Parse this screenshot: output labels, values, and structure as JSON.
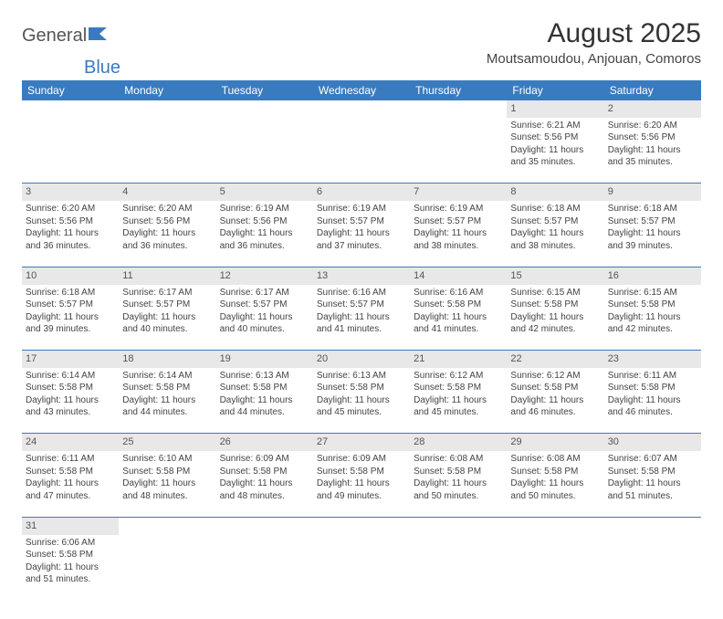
{
  "logo": {
    "text1": "General",
    "text2": "Blue"
  },
  "title": "August 2025",
  "location": "Moutsamoudou, Anjouan, Comoros",
  "colors": {
    "header_bg": "#3a7bbf",
    "header_fg": "#ffffff",
    "daynum_bg": "#e8e8e8",
    "row_border": "#3a7bbf",
    "text": "#444444",
    "page_bg": "#ffffff"
  },
  "weekdays": [
    "Sunday",
    "Monday",
    "Tuesday",
    "Wednesday",
    "Thursday",
    "Friday",
    "Saturday"
  ],
  "weeks": [
    {
      "days": [
        null,
        null,
        null,
        null,
        null,
        {
          "n": "1",
          "sr": "6:21 AM",
          "ss": "5:56 PM",
          "dl": "11 hours and 35 minutes."
        },
        {
          "n": "2",
          "sr": "6:20 AM",
          "ss": "5:56 PM",
          "dl": "11 hours and 35 minutes."
        }
      ]
    },
    {
      "days": [
        {
          "n": "3",
          "sr": "6:20 AM",
          "ss": "5:56 PM",
          "dl": "11 hours and 36 minutes."
        },
        {
          "n": "4",
          "sr": "6:20 AM",
          "ss": "5:56 PM",
          "dl": "11 hours and 36 minutes."
        },
        {
          "n": "5",
          "sr": "6:19 AM",
          "ss": "5:56 PM",
          "dl": "11 hours and 36 minutes."
        },
        {
          "n": "6",
          "sr": "6:19 AM",
          "ss": "5:57 PM",
          "dl": "11 hours and 37 minutes."
        },
        {
          "n": "7",
          "sr": "6:19 AM",
          "ss": "5:57 PM",
          "dl": "11 hours and 38 minutes."
        },
        {
          "n": "8",
          "sr": "6:18 AM",
          "ss": "5:57 PM",
          "dl": "11 hours and 38 minutes."
        },
        {
          "n": "9",
          "sr": "6:18 AM",
          "ss": "5:57 PM",
          "dl": "11 hours and 39 minutes."
        }
      ]
    },
    {
      "days": [
        {
          "n": "10",
          "sr": "6:18 AM",
          "ss": "5:57 PM",
          "dl": "11 hours and 39 minutes."
        },
        {
          "n": "11",
          "sr": "6:17 AM",
          "ss": "5:57 PM",
          "dl": "11 hours and 40 minutes."
        },
        {
          "n": "12",
          "sr": "6:17 AM",
          "ss": "5:57 PM",
          "dl": "11 hours and 40 minutes."
        },
        {
          "n": "13",
          "sr": "6:16 AM",
          "ss": "5:57 PM",
          "dl": "11 hours and 41 minutes."
        },
        {
          "n": "14",
          "sr": "6:16 AM",
          "ss": "5:58 PM",
          "dl": "11 hours and 41 minutes."
        },
        {
          "n": "15",
          "sr": "6:15 AM",
          "ss": "5:58 PM",
          "dl": "11 hours and 42 minutes."
        },
        {
          "n": "16",
          "sr": "6:15 AM",
          "ss": "5:58 PM",
          "dl": "11 hours and 42 minutes."
        }
      ]
    },
    {
      "days": [
        {
          "n": "17",
          "sr": "6:14 AM",
          "ss": "5:58 PM",
          "dl": "11 hours and 43 minutes."
        },
        {
          "n": "18",
          "sr": "6:14 AM",
          "ss": "5:58 PM",
          "dl": "11 hours and 44 minutes."
        },
        {
          "n": "19",
          "sr": "6:13 AM",
          "ss": "5:58 PM",
          "dl": "11 hours and 44 minutes."
        },
        {
          "n": "20",
          "sr": "6:13 AM",
          "ss": "5:58 PM",
          "dl": "11 hours and 45 minutes."
        },
        {
          "n": "21",
          "sr": "6:12 AM",
          "ss": "5:58 PM",
          "dl": "11 hours and 45 minutes."
        },
        {
          "n": "22",
          "sr": "6:12 AM",
          "ss": "5:58 PM",
          "dl": "11 hours and 46 minutes."
        },
        {
          "n": "23",
          "sr": "6:11 AM",
          "ss": "5:58 PM",
          "dl": "11 hours and 46 minutes."
        }
      ]
    },
    {
      "days": [
        {
          "n": "24",
          "sr": "6:11 AM",
          "ss": "5:58 PM",
          "dl": "11 hours and 47 minutes."
        },
        {
          "n": "25",
          "sr": "6:10 AM",
          "ss": "5:58 PM",
          "dl": "11 hours and 48 minutes."
        },
        {
          "n": "26",
          "sr": "6:09 AM",
          "ss": "5:58 PM",
          "dl": "11 hours and 48 minutes."
        },
        {
          "n": "27",
          "sr": "6:09 AM",
          "ss": "5:58 PM",
          "dl": "11 hours and 49 minutes."
        },
        {
          "n": "28",
          "sr": "6:08 AM",
          "ss": "5:58 PM",
          "dl": "11 hours and 50 minutes."
        },
        {
          "n": "29",
          "sr": "6:08 AM",
          "ss": "5:58 PM",
          "dl": "11 hours and 50 minutes."
        },
        {
          "n": "30",
          "sr": "6:07 AM",
          "ss": "5:58 PM",
          "dl": "11 hours and 51 minutes."
        }
      ]
    },
    {
      "days": [
        {
          "n": "31",
          "sr": "6:06 AM",
          "ss": "5:58 PM",
          "dl": "11 hours and 51 minutes."
        },
        null,
        null,
        null,
        null,
        null,
        null
      ]
    }
  ],
  "labels": {
    "sunrise": "Sunrise:",
    "sunset": "Sunset:",
    "daylight": "Daylight:"
  }
}
